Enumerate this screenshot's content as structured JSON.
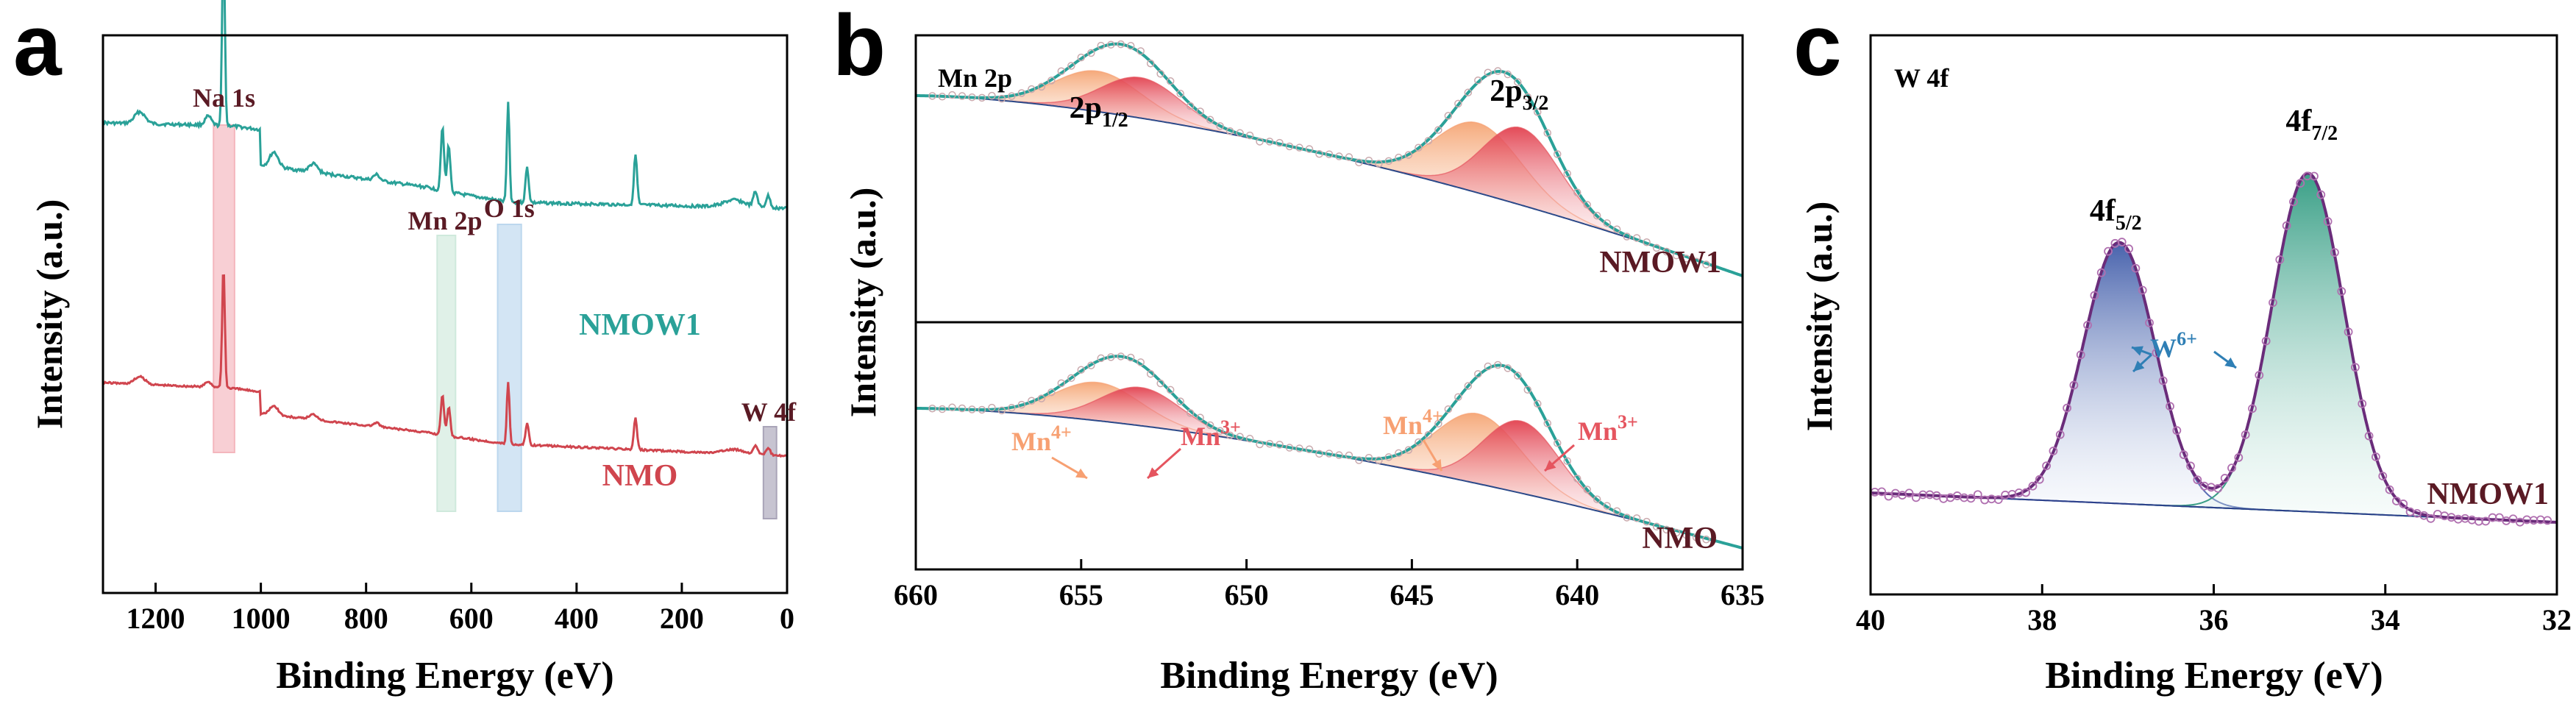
{
  "panels": {
    "a": "a",
    "b": "b",
    "c": "c"
  },
  "chart_data": [
    {
      "type": "line",
      "panel": "a",
      "xlabel": "Binding Energy (eV)",
      "ylabel": "Intensity (a.u.)",
      "xlim": [
        1300,
        0
      ],
      "ylim": [
        0,
        10
      ],
      "xticks": [
        1200,
        1000,
        800,
        600,
        400,
        200,
        0
      ],
      "series": [
        {
          "name": "NMOW1",
          "color": "#2aa198"
        },
        {
          "name": "NMO",
          "color": "#d0454e"
        }
      ],
      "regions": [
        {
          "label": "Na 1s",
          "x": [
            1090,
            1050
          ],
          "color": "#f4b6bd"
        },
        {
          "label": "Mn 2p",
          "x": [
            665,
            630
          ],
          "color": "#cfe9dc"
        },
        {
          "label": "O 1s",
          "x": [
            550,
            505
          ],
          "color": "#bcd7ee"
        },
        {
          "label": "W 4f",
          "x": [
            45,
            20
          ],
          "color": "#a9a4b8"
        }
      ]
    },
    {
      "type": "line",
      "panel": "b",
      "title": "Mn 2p",
      "xlabel": "Binding Energy (eV)",
      "ylabel": "Intensity (a.u.)",
      "xlim": [
        660,
        635
      ],
      "xticks": [
        660,
        655,
        650,
        645,
        640,
        635
      ],
      "samples": [
        "NMOW1",
        "NMO"
      ],
      "peak_labels": [
        {
          "base": "2p",
          "sub": "1/2",
          "x": 653.8
        },
        {
          "base": "2p",
          "sub": "3/2",
          "x": 642.2
        }
      ],
      "components": [
        {
          "name": "Mn4+",
          "base": "Mn",
          "sup": "4+",
          "color": "#f7a072",
          "centers": [
            654.5,
            643.0
          ]
        },
        {
          "name": "Mn3+",
          "base": "Mn",
          "sup": "3+",
          "color": "#e5555f",
          "centers": [
            653.2,
            641.7
          ]
        }
      ],
      "fit_color": "#2aa198"
    },
    {
      "type": "line",
      "panel": "c",
      "title": "W 4f",
      "xlabel": "Binding Energy (eV)",
      "ylabel": "Intensity (a.u.)",
      "xlim": [
        40,
        32
      ],
      "xticks": [
        40,
        38,
        36,
        34,
        32
      ],
      "sample": "NMOW1",
      "peaks": [
        {
          "base": "4f",
          "sub": "5/2",
          "center": 37.1,
          "color": "#5b6fb5"
        },
        {
          "base": "4f",
          "sub": "7/2",
          "center": 34.9,
          "color": "#3a9e86"
        }
      ],
      "component_label": {
        "base": "W",
        "sup": "6+",
        "color": "#2f7fb5"
      },
      "fit_color": "#6a2c7a"
    }
  ]
}
